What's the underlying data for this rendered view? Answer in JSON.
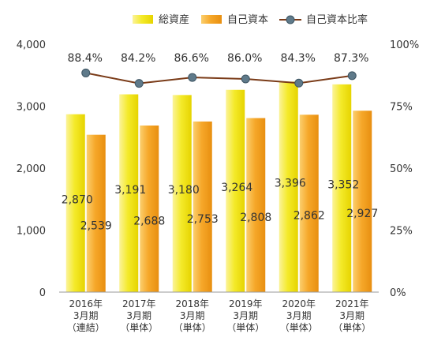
{
  "chart_data": {
    "type": "bar",
    "categories": [
      [
        "2016年",
        "3月期",
        "（連結）"
      ],
      [
        "2017年",
        "3月期",
        "（単体）"
      ],
      [
        "2018年",
        "3月期",
        "（単体）"
      ],
      [
        "2019年",
        "3月期",
        "（単体）"
      ],
      [
        "2020年",
        "3月期",
        "（単体）"
      ],
      [
        "2021年",
        "3月期",
        "（単体）"
      ]
    ],
    "series": [
      {
        "name": "総資産",
        "type": "bar",
        "axis": "left",
        "color": "#f2e600",
        "values": [
          2870,
          3191,
          3180,
          3264,
          3396,
          3352
        ],
        "labels": [
          "2,870",
          "3,191",
          "3,180",
          "3,264",
          "3,396",
          "3,352"
        ]
      },
      {
        "name": "自己資本",
        "type": "bar",
        "axis": "left",
        "color": "#f5a623",
        "values": [
          2539,
          2688,
          2753,
          2808,
          2862,
          2927
        ],
        "labels": [
          "2,539",
          "2,688",
          "2,753",
          "2,808",
          "2,862",
          "2,927"
        ]
      },
      {
        "name": "自己資本比率",
        "type": "line",
        "axis": "right",
        "line_color": "#7a3b18",
        "marker_color": "#5f7a8a",
        "values": [
          88.4,
          84.2,
          86.6,
          86.0,
          84.3,
          87.3
        ],
        "labels": [
          "88.4%",
          "84.2%",
          "86.6%",
          "86.0%",
          "84.3%",
          "87.3%"
        ]
      }
    ],
    "ylim": [
      0,
      4000
    ],
    "yticks": [
      "0",
      "1,000",
      "2,000",
      "3,000",
      "4,000"
    ],
    "y2lim": [
      0,
      100
    ],
    "y2ticks": [
      "0%",
      "25%",
      "50%",
      "75%",
      "100%"
    ],
    "legend_position": "top-right",
    "grid": false
  }
}
